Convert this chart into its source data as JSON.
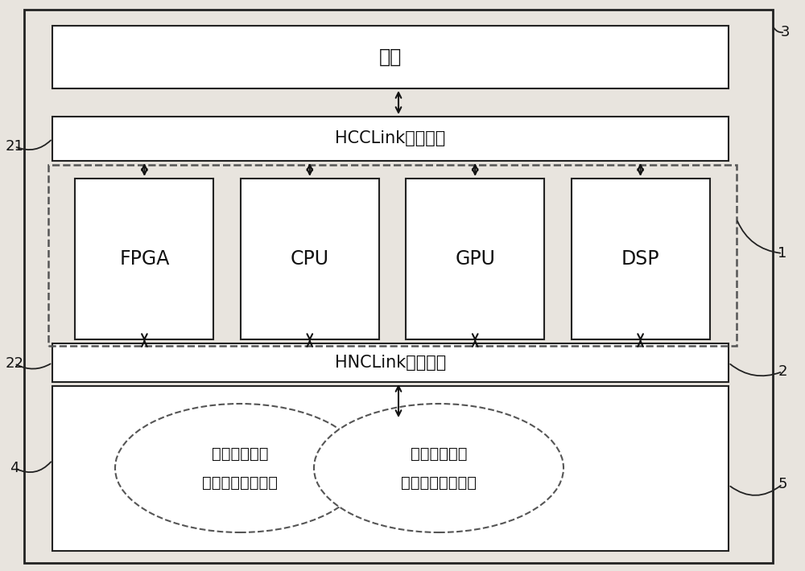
{
  "bg_color": "#e8e4de",
  "box_fill": "#ffffff",
  "edge_color": "#222222",
  "dash_color": "#555555",
  "text_color": "#111111",
  "arrow_color": "#111111",
  "fs_large": 17,
  "fs_med": 15,
  "fs_small": 14,
  "fs_label": 13,
  "memory_label": "内存",
  "hcclink_label": "HCCLink总线模块",
  "hnclink_label": "HNCLink总线模块",
  "processors": [
    "FPGA",
    "CPU",
    "GPU",
    "DSP"
  ],
  "ellipse1_label1": "基因计算解读",
  "ellipse1_label2": "数据指令输入单元",
  "ellipse2_label1": "基因计算解读",
  "ellipse2_label2": "数据指令输入单元",
  "label_3": "3",
  "label_21": "21",
  "label_22": "22",
  "label_1": "1",
  "label_2": "2",
  "label_4": "4",
  "label_5": "5"
}
